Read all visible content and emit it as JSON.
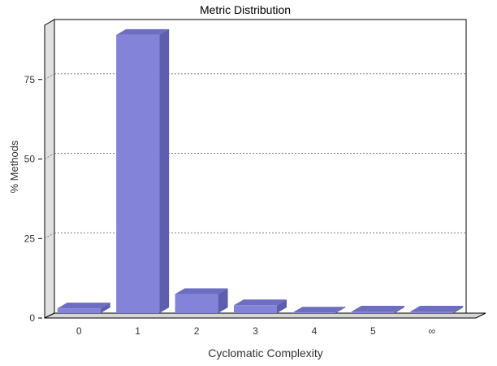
{
  "chart_data": {
    "type": "bar",
    "title": "Metric Distribution",
    "xlabel": "Cyclomatic Complexity",
    "ylabel": "% Methods",
    "categories": [
      "0",
      "1",
      "2",
      "3",
      "4",
      "5",
      "∞"
    ],
    "values": [
      1.5,
      87.5,
      6.0,
      2.5,
      0.2,
      0.5,
      0.5
    ],
    "ylim": [
      0,
      100
    ],
    "yticks": [
      "0",
      "25",
      "50",
      "75"
    ],
    "grid": true,
    "style": "3d",
    "colors": {
      "bar_front": "#8383da",
      "bar_side": "#5e5eb0",
      "bar_top": "#6d6dc2",
      "back_wall": "#ffffff",
      "side_wall": "#e0e0e0",
      "floor": "#d6d6d6",
      "grid": "#808080",
      "axis": "#000000",
      "text": "#333333"
    }
  }
}
